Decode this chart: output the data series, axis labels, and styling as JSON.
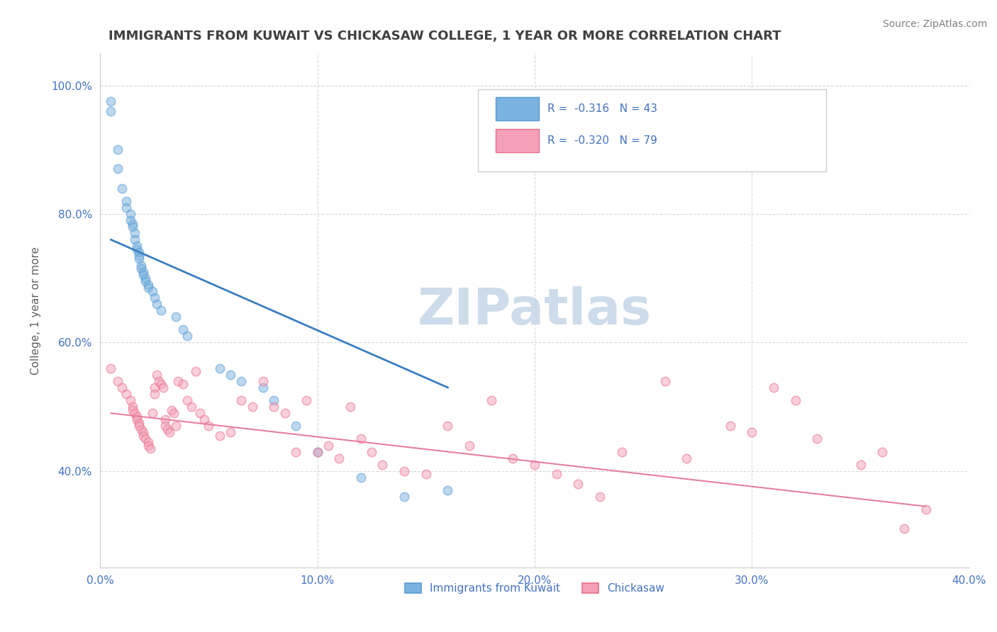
{
  "title": "IMMIGRANTS FROM KUWAIT VS CHICKASAW COLLEGE, 1 YEAR OR MORE CORRELATION CHART",
  "source_text": "Source: ZipAtlas.com",
  "xlabel": "",
  "ylabel": "College, 1 year or more",
  "xlim": [
    0.0,
    0.4
  ],
  "ylim": [
    0.25,
    1.05
  ],
  "xtick_labels": [
    "0.0%",
    "10.0%",
    "20.0%",
    "30.0%",
    "40.0%"
  ],
  "xtick_vals": [
    0.0,
    0.1,
    0.2,
    0.3,
    0.4
  ],
  "ytick_labels": [
    "40.0%",
    "60.0%",
    "80.0%",
    "100.0%"
  ],
  "ytick_vals": [
    0.4,
    0.6,
    0.8,
    1.0
  ],
  "legend_entries": [
    {
      "label": "R =  -0.316   N = 43",
      "color": "#aec6e8",
      "line_color": "#3a7fc1"
    },
    {
      "label": "R =  -0.320   N = 79",
      "color": "#f4b8c8",
      "line_color": "#e87fa0"
    }
  ],
  "legend_bottom_labels": [
    "Immigrants from Kuwait",
    "Chickasaw"
  ],
  "blue_scatter_x": [
    0.005,
    0.005,
    0.008,
    0.008,
    0.01,
    0.012,
    0.012,
    0.014,
    0.014,
    0.015,
    0.015,
    0.016,
    0.016,
    0.017,
    0.017,
    0.018,
    0.018,
    0.018,
    0.019,
    0.019,
    0.02,
    0.02,
    0.021,
    0.021,
    0.022,
    0.022,
    0.024,
    0.025,
    0.026,
    0.028,
    0.035,
    0.038,
    0.04,
    0.055,
    0.06,
    0.065,
    0.075,
    0.08,
    0.09,
    0.1,
    0.12,
    0.14,
    0.16
  ],
  "blue_scatter_y": [
    0.975,
    0.96,
    0.9,
    0.87,
    0.84,
    0.82,
    0.81,
    0.8,
    0.79,
    0.785,
    0.78,
    0.77,
    0.76,
    0.75,
    0.745,
    0.74,
    0.735,
    0.73,
    0.72,
    0.715,
    0.71,
    0.705,
    0.7,
    0.695,
    0.69,
    0.685,
    0.68,
    0.67,
    0.66,
    0.65,
    0.64,
    0.62,
    0.61,
    0.56,
    0.55,
    0.54,
    0.53,
    0.51,
    0.47,
    0.43,
    0.39,
    0.36,
    0.37
  ],
  "pink_scatter_x": [
    0.005,
    0.008,
    0.01,
    0.012,
    0.014,
    0.015,
    0.015,
    0.016,
    0.017,
    0.017,
    0.018,
    0.018,
    0.019,
    0.02,
    0.02,
    0.021,
    0.022,
    0.022,
    0.023,
    0.024,
    0.025,
    0.025,
    0.026,
    0.027,
    0.028,
    0.029,
    0.03,
    0.03,
    0.031,
    0.032,
    0.033,
    0.034,
    0.035,
    0.036,
    0.038,
    0.04,
    0.042,
    0.044,
    0.046,
    0.048,
    0.05,
    0.055,
    0.06,
    0.065,
    0.07,
    0.075,
    0.08,
    0.085,
    0.09,
    0.095,
    0.1,
    0.105,
    0.11,
    0.115,
    0.12,
    0.125,
    0.13,
    0.14,
    0.15,
    0.16,
    0.17,
    0.18,
    0.19,
    0.2,
    0.21,
    0.22,
    0.23,
    0.24,
    0.26,
    0.27,
    0.29,
    0.3,
    0.31,
    0.32,
    0.33,
    0.35,
    0.36,
    0.37,
    0.38
  ],
  "pink_scatter_y": [
    0.56,
    0.54,
    0.53,
    0.52,
    0.51,
    0.5,
    0.495,
    0.49,
    0.485,
    0.48,
    0.475,
    0.47,
    0.465,
    0.46,
    0.455,
    0.45,
    0.445,
    0.44,
    0.435,
    0.49,
    0.53,
    0.52,
    0.55,
    0.54,
    0.535,
    0.53,
    0.48,
    0.47,
    0.465,
    0.46,
    0.495,
    0.49,
    0.47,
    0.54,
    0.535,
    0.51,
    0.5,
    0.555,
    0.49,
    0.48,
    0.47,
    0.455,
    0.46,
    0.51,
    0.5,
    0.54,
    0.5,
    0.49,
    0.43,
    0.51,
    0.43,
    0.44,
    0.42,
    0.5,
    0.45,
    0.43,
    0.41,
    0.4,
    0.395,
    0.47,
    0.44,
    0.51,
    0.42,
    0.41,
    0.395,
    0.38,
    0.36,
    0.43,
    0.54,
    0.42,
    0.47,
    0.46,
    0.53,
    0.51,
    0.45,
    0.41,
    0.43,
    0.31,
    0.34
  ],
  "blue_line_x": [
    0.005,
    0.16
  ],
  "blue_line_y": [
    0.76,
    0.53
  ],
  "pink_line_x": [
    0.005,
    0.38
  ],
  "pink_line_y": [
    0.49,
    0.345
  ],
  "scatter_size": 80,
  "scatter_alpha": 0.5,
  "scatter_linewidth": 1.2,
  "blue_color": "#7ab3e0",
  "blue_edge": "#5b9bd5",
  "pink_color": "#f4a0b8",
  "pink_edge": "#e8708a",
  "blue_line_color": "#3a7fc1",
  "pink_line_color": "#e87fa0",
  "grid_color": "#d0d0d0",
  "watermark": "ZIPatlas",
  "watermark_color": "#c8d8e8",
  "watermark_fontsize": 52,
  "background_color": "#ffffff",
  "title_color": "#404040",
  "title_fontsize": 13,
  "source_fontsize": 10,
  "source_color": "#808080",
  "axis_label_color": "#606060",
  "tick_label_color": "#4472c4",
  "legend_border_color": "#d0d0d0"
}
